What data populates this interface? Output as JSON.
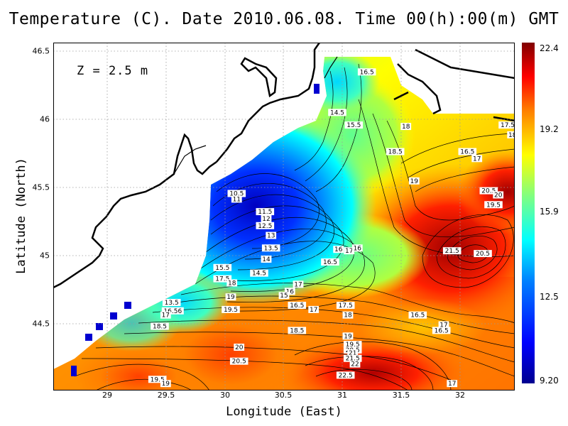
{
  "title": "Temperature (C). Date 2010.06.08. Time 00(h):00(m) GMT",
  "depth_label": "Z = 2.5 m",
  "xlabel": "Longitude (East)",
  "ylabel": "Latitude (North)",
  "xticks": [
    "29",
    "29.5",
    "30",
    "30.5",
    "31",
    "31.5",
    "32"
  ],
  "yticks": [
    "46.5",
    "46",
    "45.5",
    "45",
    "44.5"
  ],
  "colorbar": {
    "ticks": [
      "22.4",
      "19.2",
      "15.9",
      "12.5",
      "9.20"
    ],
    "min": 9.2,
    "max": 22.4,
    "colors": [
      "#00008f",
      "#0000ff",
      "#0080ff",
      "#00ffff",
      "#80ff80",
      "#ffff00",
      "#ff8000",
      "#ff0000",
      "#800000"
    ]
  },
  "contour_labels": [
    {
      "text": "16.5",
      "lon": 31.2,
      "lat": 46.34
    },
    {
      "text": "14.5",
      "lon": 30.95,
      "lat": 46.05
    },
    {
      "text": "15.5",
      "lon": 31.09,
      "lat": 45.96
    },
    {
      "text": "18",
      "lon": 31.53,
      "lat": 45.95
    },
    {
      "text": "17.5",
      "lon": 32.39,
      "lat": 45.96
    },
    {
      "text": "18",
      "lon": 32.43,
      "lat": 45.89
    },
    {
      "text": "18.5",
      "lon": 31.44,
      "lat": 45.77
    },
    {
      "text": "16.5",
      "lon": 32.05,
      "lat": 45.77
    },
    {
      "text": "17",
      "lon": 32.13,
      "lat": 45.72
    },
    {
      "text": "19",
      "lon": 31.6,
      "lat": 45.56
    },
    {
      "text": "20.5",
      "lon": 32.23,
      "lat": 45.49
    },
    {
      "text": "20",
      "lon": 32.31,
      "lat": 45.46
    },
    {
      "text": "19.5",
      "lon": 32.27,
      "lat": 45.39
    },
    {
      "text": "10.5",
      "lon": 30.1,
      "lat": 45.47
    },
    {
      "text": "11",
      "lon": 30.1,
      "lat": 45.43
    },
    {
      "text": "11.5",
      "lon": 30.34,
      "lat": 45.34
    },
    {
      "text": "12",
      "lon": 30.35,
      "lat": 45.29
    },
    {
      "text": "12.5",
      "lon": 30.34,
      "lat": 45.24
    },
    {
      "text": "13",
      "lon": 30.39,
      "lat": 45.17
    },
    {
      "text": "13.5",
      "lon": 30.39,
      "lat": 45.08
    },
    {
      "text": "16",
      "lon": 30.96,
      "lat": 45.07
    },
    {
      "text": "17",
      "lon": 31.05,
      "lat": 45.06
    },
    {
      "text": "16",
      "lon": 31.12,
      "lat": 45.08
    },
    {
      "text": "21.5",
      "lon": 31.92,
      "lat": 45.06
    },
    {
      "text": "20.5",
      "lon": 32.18,
      "lat": 45.04
    },
    {
      "text": "14",
      "lon": 30.35,
      "lat": 45.0
    },
    {
      "text": "16.5",
      "lon": 30.89,
      "lat": 44.98
    },
    {
      "text": "15.5",
      "lon": 29.98,
      "lat": 44.94
    },
    {
      "text": "14.5",
      "lon": 30.29,
      "lat": 44.9
    },
    {
      "text": "17.5",
      "lon": 29.98,
      "lat": 44.86
    },
    {
      "text": "18",
      "lon": 30.06,
      "lat": 44.83
    },
    {
      "text": "17",
      "lon": 30.62,
      "lat": 44.82
    },
    {
      "text": "16",
      "lon": 30.55,
      "lat": 44.77
    },
    {
      "text": "15",
      "lon": 30.5,
      "lat": 44.74
    },
    {
      "text": "19",
      "lon": 30.05,
      "lat": 44.73
    },
    {
      "text": "13.5",
      "lon": 29.55,
      "lat": 44.69
    },
    {
      "text": "16.5",
      "lon": 30.61,
      "lat": 44.67
    },
    {
      "text": "17",
      "lon": 30.75,
      "lat": 44.64
    },
    {
      "text": "17.5",
      "lon": 31.02,
      "lat": 44.67
    },
    {
      "text": "19.5",
      "lon": 30.05,
      "lat": 44.64
    },
    {
      "text": "16.56",
      "lon": 29.56,
      "lat": 44.63
    },
    {
      "text": "17",
      "lon": 29.5,
      "lat": 44.6
    },
    {
      "text": "18",
      "lon": 31.04,
      "lat": 44.6
    },
    {
      "text": "16.5",
      "lon": 31.63,
      "lat": 44.6
    },
    {
      "text": "17",
      "lon": 31.85,
      "lat": 44.53
    },
    {
      "text": "16.5",
      "lon": 31.83,
      "lat": 44.49
    },
    {
      "text": "18.5",
      "lon": 29.45,
      "lat": 44.52
    },
    {
      "text": "18.5",
      "lon": 30.61,
      "lat": 44.49
    },
    {
      "text": "19",
      "lon": 31.04,
      "lat": 44.45
    },
    {
      "text": "19.5",
      "lon": 31.08,
      "lat": 44.39
    },
    {
      "text": "20",
      "lon": 30.12,
      "lat": 44.37
    },
    {
      "text": "20.5",
      "lon": 31.08,
      "lat": 44.35
    },
    {
      "text": "21",
      "lon": 31.08,
      "lat": 44.33
    },
    {
      "text": "21.5",
      "lon": 31.08,
      "lat": 44.29
    },
    {
      "text": "20.5",
      "lon": 30.12,
      "lat": 44.27
    },
    {
      "text": "22",
      "lon": 31.1,
      "lat": 44.25
    },
    {
      "text": "22.5",
      "lon": 31.02,
      "lat": 44.17
    },
    {
      "text": "19.5",
      "lon": 29.43,
      "lat": 44.14
    },
    {
      "text": "19",
      "lon": 29.5,
      "lat": 44.11
    },
    {
      "text": "17",
      "lon": 31.92,
      "lat": 44.11
    }
  ],
  "chart_data": {
    "type": "heatmap",
    "title": "Temperature (C). Date 2010.06.08. Time 00(h):00(m) GMT",
    "xlabel": "Longitude (East)",
    "ylabel": "Latitude (North)",
    "xlim": [
      28.55,
      32.45
    ],
    "ylim": [
      44.06,
      46.55
    ],
    "value_range": [
      9.2,
      22.4
    ],
    "annotation": "Z = 2.5 m",
    "grid": true,
    "hotspots": [
      {
        "lon": 31.9,
        "lat": 45.15,
        "value": 21.8
      },
      {
        "lon": 32.3,
        "lat": 45.45,
        "value": 21.2
      },
      {
        "lon": 31.1,
        "lat": 44.15,
        "value": 22.6
      },
      {
        "lon": 30.1,
        "lat": 44.25,
        "value": 20.6
      },
      {
        "lon": 29.6,
        "lat": 44.15,
        "value": 19.5
      },
      {
        "lon": 30.25,
        "lat": 45.4,
        "value": 10.2
      },
      {
        "lon": 30.05,
        "lat": 45.48,
        "value": 10.0
      },
      {
        "lon": 29.9,
        "lat": 45.1,
        "value": 13.0
      },
      {
        "lon": 30.9,
        "lat": 46.25,
        "value": 14.0
      },
      {
        "lon": 30.5,
        "lat": 45.8,
        "value": 12.5
      },
      {
        "lon": 31.0,
        "lat": 45.95,
        "value": 15.2
      },
      {
        "lon": 31.0,
        "lat": 45.05,
        "value": 16.7
      },
      {
        "lon": 30.7,
        "lat": 44.75,
        "value": 16.0
      },
      {
        "lon": 31.6,
        "lat": 44.6,
        "value": 16.8
      },
      {
        "lon": 31.5,
        "lat": 45.55,
        "value": 18.6
      },
      {
        "lon": 30.7,
        "lat": 44.45,
        "value": 19.2
      },
      {
        "lon": 29.4,
        "lat": 44.6,
        "value": 16.8
      }
    ],
    "colorbar_ticks": [
      22.4,
      19.2,
      15.9,
      12.5,
      9.2
    ]
  }
}
